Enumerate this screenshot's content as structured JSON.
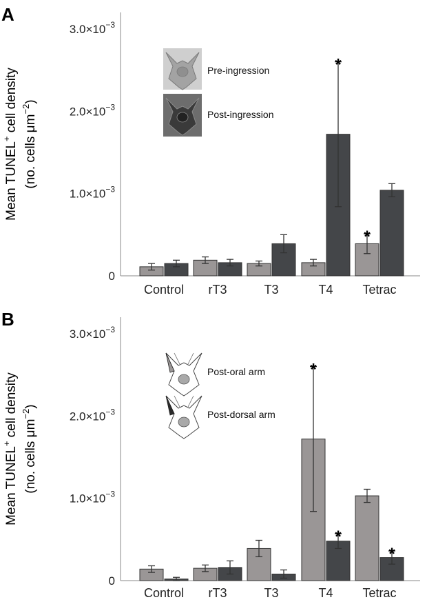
{
  "colors": {
    "light": "#9a9696",
    "dark": "#444649",
    "axis": "#8a8a8a"
  },
  "chart_data": [
    {
      "panel": "A",
      "type": "bar",
      "ylabel_line1": "Mean TUNEL",
      "ylabel_sup1": "+",
      "ylabel_line1_tail": " cell density",
      "ylabel_line2": "(no. cells μm",
      "ylabel_sup2": "−2",
      "ylabel_line2_tail": ")",
      "ylim": [
        0,
        0.0032
      ],
      "yticks": [
        {
          "value": 0,
          "mantissa": "0",
          "exp": ""
        },
        {
          "value": 0.001,
          "mantissa": "1.0×10",
          "exp": "−3"
        },
        {
          "value": 0.002,
          "mantissa": "2.0×10",
          "exp": "−3"
        },
        {
          "value": 0.003,
          "mantissa": "3.0×10",
          "exp": "−3"
        }
      ],
      "categories": [
        "Control",
        "rT3",
        "T3",
        "T4",
        "Tetrac"
      ],
      "series": [
        {
          "name": "Pre-ingression",
          "color": "light",
          "values": [
            0.00011,
            0.00019,
            0.00015,
            0.00016,
            0.00039
          ],
          "errors": [
            4e-05,
            4e-05,
            3e-05,
            4e-05,
            0.00012
          ],
          "stars": [
            false,
            false,
            false,
            false,
            true
          ]
        },
        {
          "name": "Post-ingression",
          "color": "dark",
          "values": [
            0.00015,
            0.00016,
            0.00039,
            0.00172,
            0.00104
          ],
          "errors": [
            4e-05,
            4e-05,
            0.00011,
            0.00088,
            8e-05
          ],
          "stars": [
            false,
            false,
            false,
            true,
            false
          ]
        }
      ]
    },
    {
      "panel": "B",
      "type": "bar",
      "ylabel_line1": "Mean TUNEL",
      "ylabel_sup1": "+",
      "ylabel_line1_tail": " cell density",
      "ylabel_line2": "(no. cells μm",
      "ylabel_sup2": "−2",
      "ylabel_line2_tail": ")",
      "ylim": [
        0,
        0.0032
      ],
      "yticks": [
        {
          "value": 0,
          "mantissa": "0",
          "exp": ""
        },
        {
          "value": 0.001,
          "mantissa": "1.0×10",
          "exp": "−3"
        },
        {
          "value": 0.002,
          "mantissa": "2.0×10",
          "exp": "−3"
        },
        {
          "value": 0.003,
          "mantissa": "3.0×10",
          "exp": "−3"
        }
      ],
      "categories": [
        "Control",
        "rT3",
        "T3",
        "T4",
        "Tetrac"
      ],
      "series": [
        {
          "name": "Post-oral arm",
          "color": "light",
          "values": [
            0.00014,
            0.00015,
            0.00039,
            0.00172,
            0.00103
          ],
          "errors": [
            4e-05,
            4e-05,
            0.0001,
            0.00088,
            8e-05
          ],
          "stars": [
            false,
            false,
            false,
            true,
            false
          ]
        },
        {
          "name": "Post-dorsal arm",
          "color": "dark",
          "values": [
            2e-05,
            0.00016,
            8e-05,
            0.00048,
            0.00028
          ],
          "errors": [
            2e-05,
            8e-05,
            5e-05,
            9e-05,
            8e-05
          ],
          "stars": [
            false,
            false,
            false,
            true,
            true
          ]
        }
      ]
    }
  ]
}
